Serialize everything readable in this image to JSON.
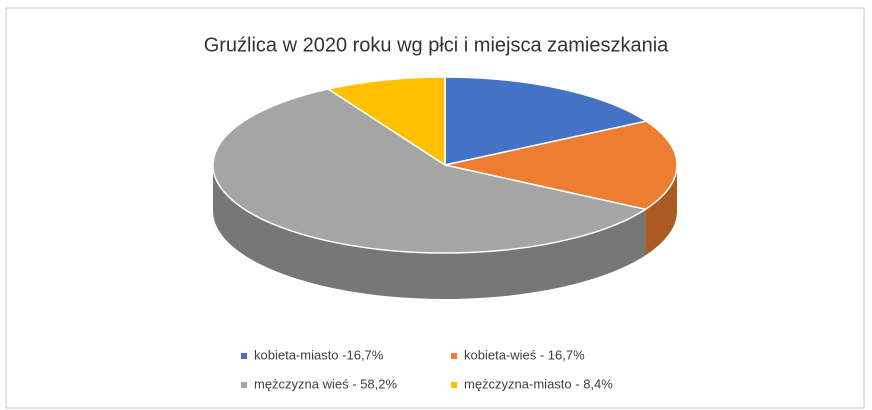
{
  "chart_data": {
    "type": "pie",
    "title": "Gruźlica w 2020 roku wg płci i miejsca zamieszkania",
    "series": [
      {
        "name": "kobieta-miasto -16,7%",
        "color": "#4472c4",
        "values": [
          16.7
        ]
      },
      {
        "name": "kobieta-wieś - 16,7%",
        "color": "#ed7d31",
        "values": [
          16.7
        ]
      },
      {
        "name": "mężczyzna wieś - 58,2%",
        "color": "#a5a5a5",
        "values": [
          58.2
        ]
      },
      {
        "name": "mężczyzna-miasto - 8,4%",
        "color": "#ffc000",
        "values": [
          8.4
        ]
      }
    ],
    "legend": "bottom"
  }
}
